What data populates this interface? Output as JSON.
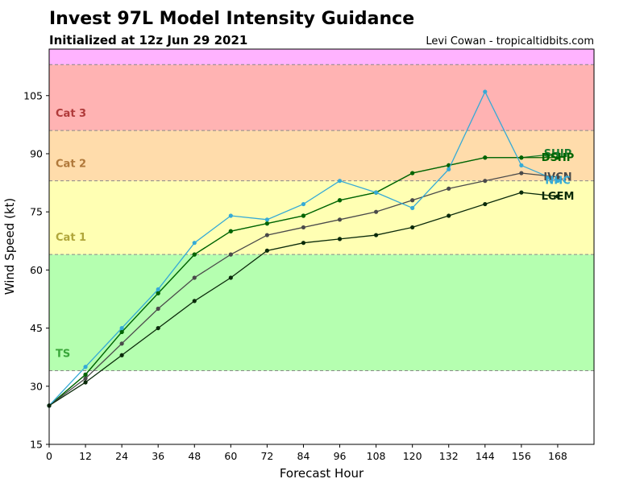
{
  "chart_data": {
    "type": "line",
    "title": "Invest 97L Model Intensity Guidance",
    "subtitle": "Initialized at 12z Jun 29 2021",
    "credit": "Levi Cowan - tropicaltidbits.com",
    "xlabel": "Forecast Hour",
    "ylabel": "Wind Speed (kt)",
    "xlim": [
      0,
      180
    ],
    "ylim": [
      15,
      117
    ],
    "xticks": [
      0,
      12,
      24,
      36,
      48,
      60,
      72,
      84,
      96,
      108,
      120,
      132,
      144,
      156,
      168
    ],
    "yticks": [
      15,
      30,
      45,
      60,
      75,
      90,
      105
    ],
    "grid": false,
    "bands": [
      {
        "label": "TS",
        "from": 34,
        "to": 64,
        "color": "#b5ffb0",
        "label_color": "#3aa63a"
      },
      {
        "label": "Cat 1",
        "from": 64,
        "to": 83,
        "color": "#ffffb3",
        "label_color": "#b0a63a"
      },
      {
        "label": "Cat 2",
        "from": 83,
        "to": 96,
        "color": "#ffdcab",
        "label_color": "#b0783a"
      },
      {
        "label": "Cat 3",
        "from": 96,
        "to": 113,
        "color": "#ffb3b3",
        "label_color": "#b03a3a"
      },
      {
        "label": "",
        "from": 113,
        "to": 117,
        "color": "#ffb3ff",
        "label_color": "#b03ab0"
      }
    ],
    "series": [
      {
        "name": "SHIP",
        "color": "#1a7a2e",
        "x": [
          0,
          12,
          24,
          36,
          48,
          60,
          72,
          84,
          96,
          108,
          120,
          132,
          144,
          156,
          168
        ],
        "values": [
          25,
          33,
          44,
          54,
          64,
          70,
          72,
          74,
          78,
          80,
          85,
          87,
          89,
          89,
          90
        ]
      },
      {
        "name": "DSHP",
        "color": "#006400",
        "x": [
          0,
          12,
          24,
          36,
          48,
          60,
          72,
          84,
          96,
          108,
          120,
          132,
          144,
          156,
          168
        ],
        "values": [
          25,
          33,
          44,
          54,
          64,
          70,
          72,
          74,
          78,
          80,
          85,
          87,
          89,
          89,
          89
        ]
      },
      {
        "name": "IVCN",
        "color": "#4a4a4a",
        "x": [
          0,
          12,
          24,
          36,
          48,
          60,
          72,
          84,
          96,
          108,
          120,
          132,
          144,
          156,
          168
        ],
        "values": [
          25,
          32,
          41,
          50,
          58,
          64,
          69,
          71,
          73,
          75,
          78,
          81,
          83,
          85,
          84
        ]
      },
      {
        "name": "NHC",
        "color": "#35aad6",
        "x": [
          0,
          12,
          24,
          36,
          48,
          60,
          72,
          84,
          96,
          108,
          120,
          132,
          144,
          156,
          168
        ],
        "values": [
          25,
          35,
          45,
          55,
          67,
          74,
          73,
          77,
          83,
          80,
          76,
          86,
          106,
          87,
          83
        ]
      },
      {
        "name": "LGEM",
        "color": "#0a2a0a",
        "x": [
          0,
          12,
          24,
          36,
          48,
          60,
          72,
          84,
          96,
          108,
          120,
          132,
          144,
          156,
          168
        ],
        "values": [
          25,
          31,
          38,
          45,
          52,
          58,
          65,
          67,
          68,
          69,
          71,
          74,
          77,
          80,
          79
        ]
      }
    ]
  }
}
